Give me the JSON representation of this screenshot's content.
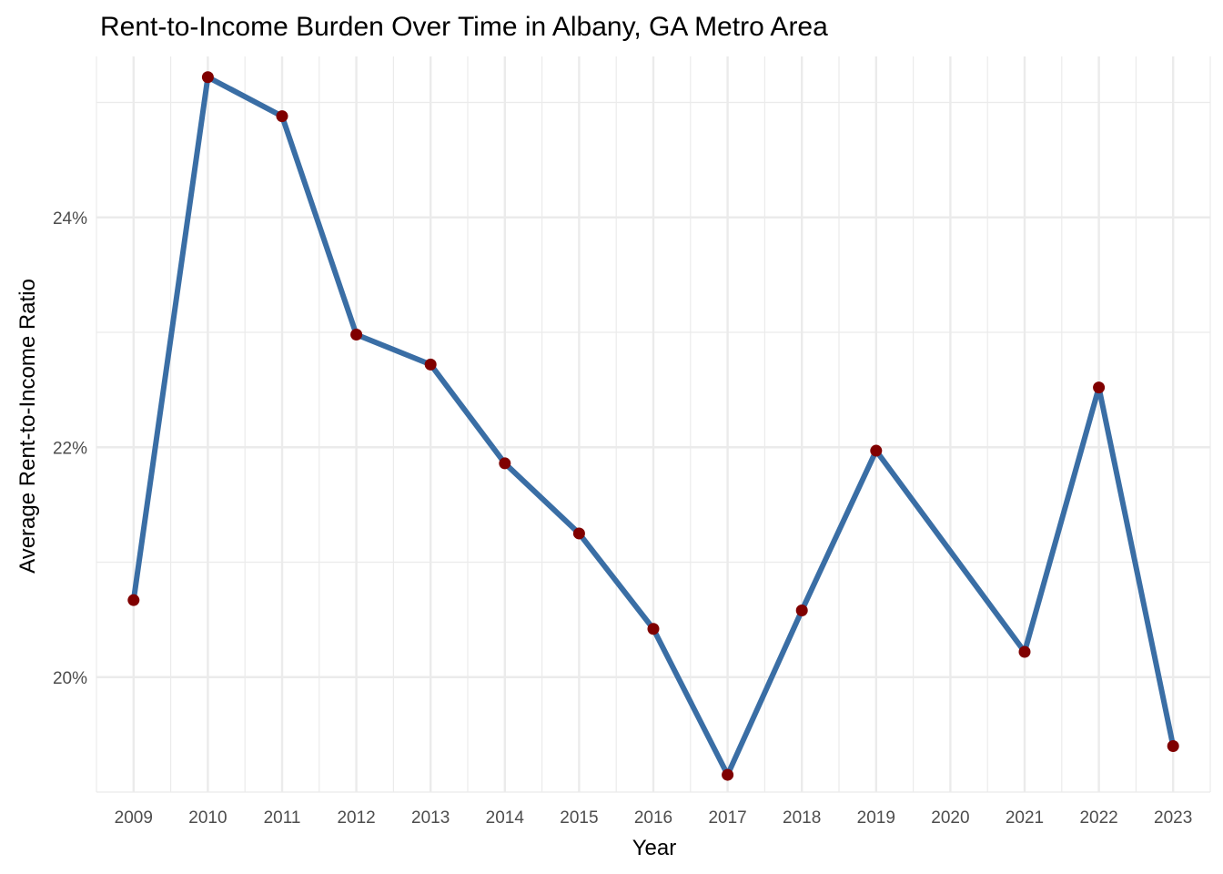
{
  "chart_data": {
    "type": "line",
    "title": "Rent-to-Income Burden Over Time in Albany, GA Metro Area",
    "xlabel": "Year",
    "ylabel": "Average Rent-to-Income Ratio",
    "x": [
      2009,
      2010,
      2011,
      2012,
      2013,
      2014,
      2015,
      2016,
      2017,
      2018,
      2019,
      2020,
      2021,
      2022,
      2023
    ],
    "x_tick_labels": [
      "2009",
      "2010",
      "2011",
      "2012",
      "2013",
      "2014",
      "2015",
      "2016",
      "2017",
      "2018",
      "2019",
      "2020",
      "2021",
      "2022",
      "2023"
    ],
    "series": [
      {
        "values": [
          0.2067,
          0.2522,
          0.2488,
          0.2298,
          0.2272,
          0.2186,
          0.2125,
          0.2042,
          0.1915,
          0.2058,
          0.2197,
          null,
          0.2022,
          0.2252,
          0.194
        ],
        "line_color": "#3a6ea5",
        "point_color": "#800000"
      }
    ],
    "y_ticks": [
      0.2,
      0.22,
      0.24
    ],
    "y_tick_labels": [
      "20%",
      "22%",
      "24%"
    ],
    "xlim": [
      2008.5,
      2023.5
    ],
    "ylim": [
      0.19,
      0.254
    ],
    "grid": true,
    "legend": "none"
  }
}
